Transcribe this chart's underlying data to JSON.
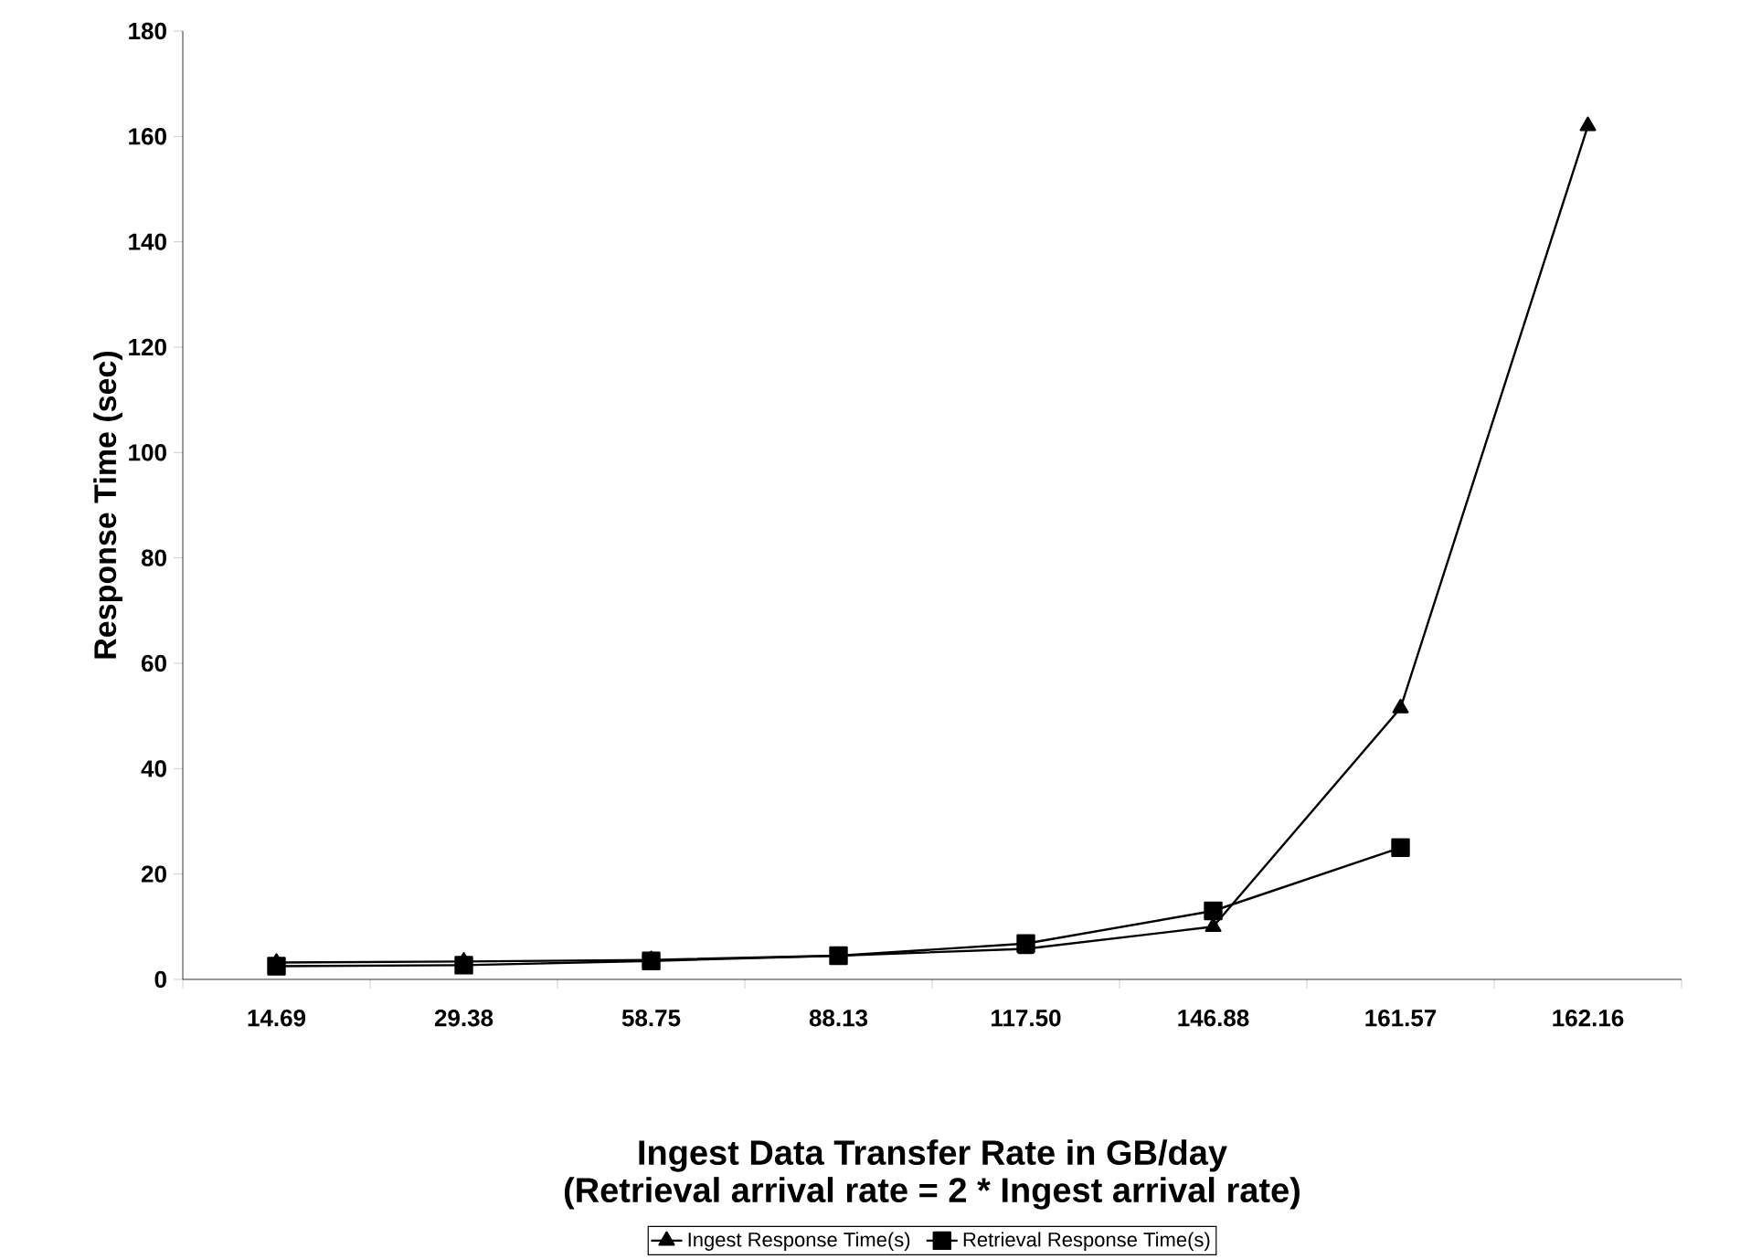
{
  "chart_data": {
    "type": "line",
    "xlabel": "Ingest Data Transfer Rate in GB/day",
    "ylabel": "Response Time (sec)",
    "annotations": [
      "(Retrieval arrival rate = 2 * Ingest arrival rate)"
    ],
    "categories": [
      "14.69",
      "29.38",
      "58.75",
      "88.13",
      "117.50",
      "146.88",
      "161.57",
      "162.16"
    ],
    "series": [
      {
        "name": "Ingest Response Time(s)",
        "color": "#000000",
        "marker": "triangle",
        "values": [
          3.2,
          3.4,
          3.7,
          4.5,
          5.8,
          10,
          51.5,
          162
        ]
      },
      {
        "name": "Retrieval Response Time(s)",
        "color": "#000000",
        "marker": "square",
        "values": [
          2.5,
          2.7,
          3.5,
          4.5,
          6.8,
          13,
          25,
          null
        ]
      }
    ],
    "ylim": [
      0,
      180
    ],
    "yticks": [
      0,
      20,
      40,
      60,
      80,
      100,
      120,
      140,
      160,
      180
    ],
    "legend": "bottom",
    "line_style": "solid"
  }
}
